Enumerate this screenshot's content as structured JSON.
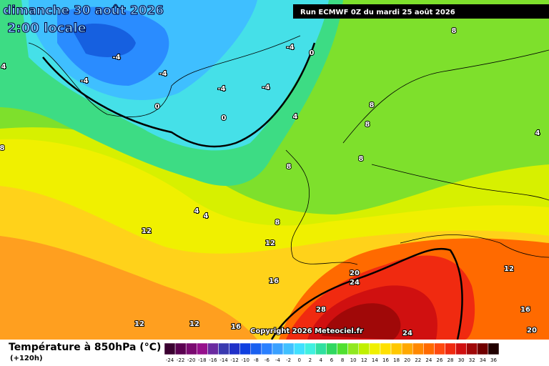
{
  "header": {
    "title": "dimanche 30 août 2026",
    "subtitle": "2:00 locale",
    "run": "Run ECMWF 0Z du mardi 25 août 2026"
  },
  "map": {
    "contour_labels": [
      -4,
      -4,
      -4,
      -4,
      -4,
      -4,
      0,
      0,
      0,
      4,
      4,
      4,
      4,
      8,
      8,
      8,
      8,
      8,
      8,
      4,
      8,
      12,
      12,
      12,
      12,
      12,
      16,
      16,
      16,
      20,
      20,
      24,
      24,
      28
    ],
    "copyright": "Copyright 2026 Meteociel.fr"
  },
  "legend": {
    "title": "Température à 850hPa (°C)",
    "subtitle": "(+120h)",
    "labels": [
      -24,
      -22,
      -20,
      -18,
      -16,
      -14,
      -12,
      -10,
      -8,
      -6,
      -4,
      -2,
      0,
      2,
      4,
      6,
      8,
      10,
      12,
      14,
      16,
      18,
      20,
      22,
      24,
      26,
      28,
      30,
      32,
      34,
      36
    ],
    "colors": [
      "#3a0030",
      "#5a0050",
      "#7a0a70",
      "#96108c",
      "#6a2aa0",
      "#3a3ab0",
      "#2030c8",
      "#1040e0",
      "#1a60f0",
      "#2a80ff",
      "#3aa0ff",
      "#40c0ff",
      "#40e0ff",
      "#40f0e0",
      "#30e0a0",
      "#30d860",
      "#50e030",
      "#90e820",
      "#c0f000",
      "#f0f000",
      "#ffe000",
      "#ffc800",
      "#ffa800",
      "#ff8800",
      "#ff6a00",
      "#ff4a10",
      "#f02a10",
      "#d01010",
      "#a00808",
      "#700000",
      "#200000"
    ]
  }
}
